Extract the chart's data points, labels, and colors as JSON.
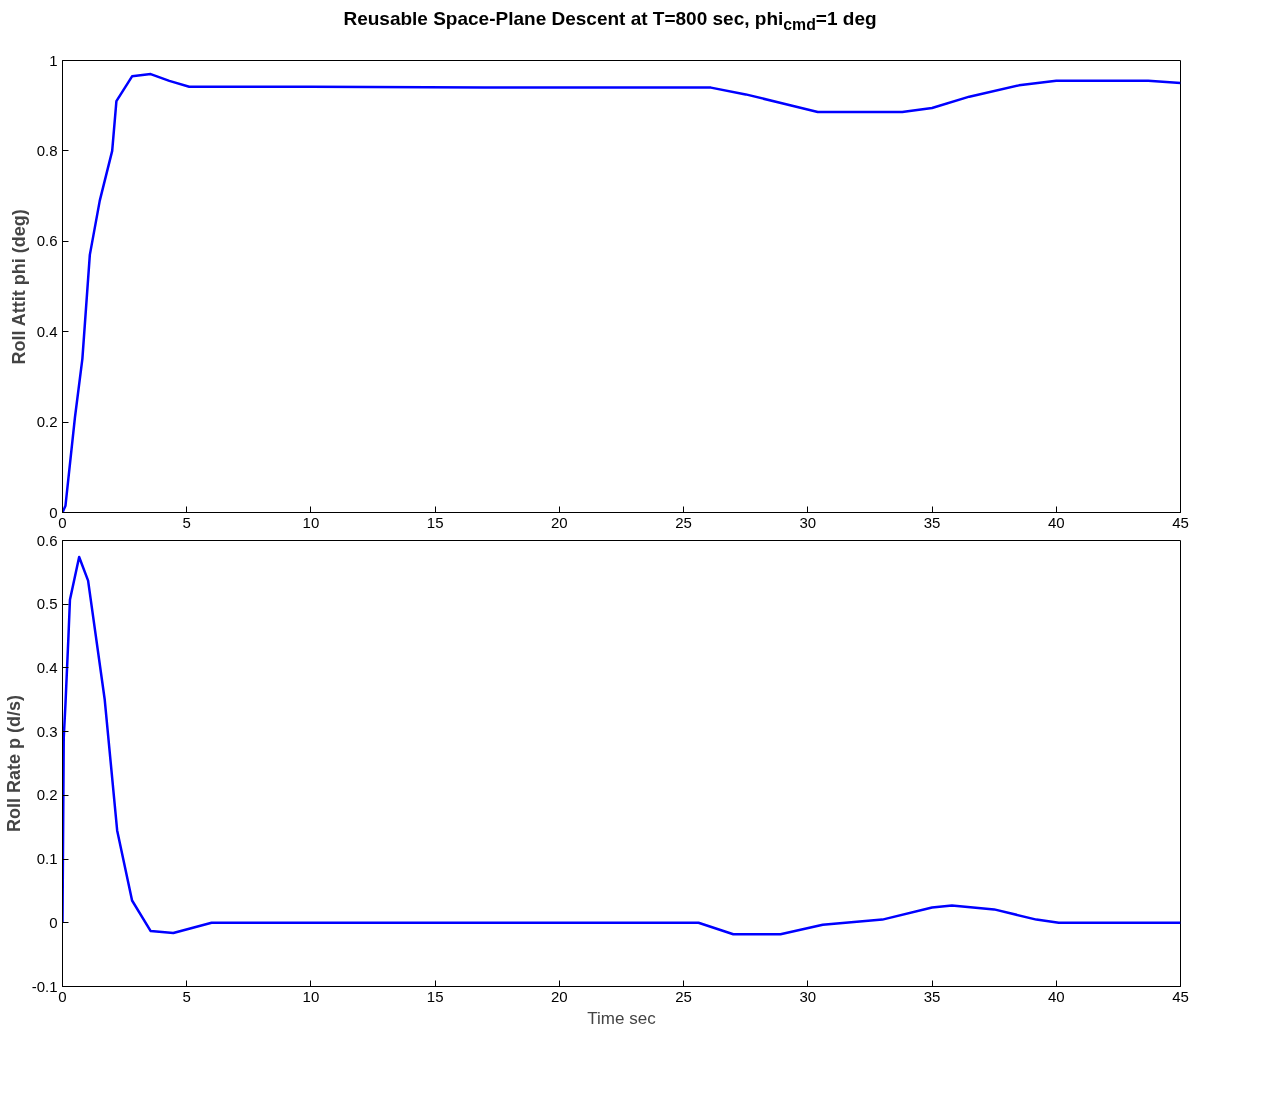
{
  "chart_data": [
    {
      "type": "line",
      "title": "Reusable Space-Plane Descent at T=800 sec, phi$_{cmd}$=1 deg",
      "ylabel": "Roll Attit phi (deg)",
      "line_style": "solid",
      "xlim": [
        0,
        45
      ],
      "ylim": [
        0,
        1
      ],
      "xticks": [
        0,
        5,
        10,
        15,
        20,
        25,
        30,
        35,
        40,
        45
      ],
      "yticks": [
        0,
        0.2,
        0.4,
        0.6,
        0.8,
        1
      ],
      "series": [
        {
          "color": "#0000ff",
          "x": [
            0,
            0.12,
            0.5,
            0.8,
            1.1,
            1.5,
            2.0,
            2.17,
            2.8,
            3.55,
            4.3,
            5.1,
            10,
            17,
            26.1,
            27.5,
            29,
            30.4,
            33.8,
            35,
            36.5,
            38.5,
            40.0,
            43.7,
            45
          ],
          "values": [
            0,
            0.015,
            0.21,
            0.34,
            0.57,
            0.69,
            0.8,
            0.91,
            0.965,
            0.97,
            0.955,
            0.942,
            0.942,
            0.94,
            0.94,
            0.925,
            0.905,
            0.886,
            0.886,
            0.895,
            0.92,
            0.945,
            0.955,
            0.955,
            0.95
          ]
        }
      ]
    },
    {
      "type": "line",
      "xlabel": "Time sec",
      "ylabel": "Roll Rate p (d/s)",
      "line_style": "solid",
      "xlim": [
        0,
        45
      ],
      "ylim": [
        -0.1,
        0.6
      ],
      "xticks": [
        0,
        5,
        10,
        15,
        20,
        25,
        30,
        35,
        40,
        45
      ],
      "yticks": [
        -0.1,
        0,
        0.1,
        0.2,
        0.3,
        0.4,
        0.5,
        0.6
      ],
      "series": [
        {
          "color": "#0000ff",
          "x": [
            0,
            0.05,
            0.12,
            0.24,
            0.3,
            0.67,
            1.03,
            1.7,
            2.2,
            2.8,
            3.55,
            4.46,
            6.0,
            25.6,
            27.0,
            28.9,
            30.6,
            33.0,
            35.0,
            35.8,
            37.5,
            39.2,
            40.1,
            45
          ],
          "values": [
            0,
            0.29,
            0.344,
            0.45,
            0.507,
            0.574,
            0.537,
            0.35,
            0.145,
            0.035,
            -0.013,
            -0.016,
            0,
            0,
            -0.018,
            -0.018,
            -0.003,
            0.005,
            0.024,
            0.027,
            0.021,
            0.005,
            0,
            0
          ]
        }
      ]
    }
  ]
}
